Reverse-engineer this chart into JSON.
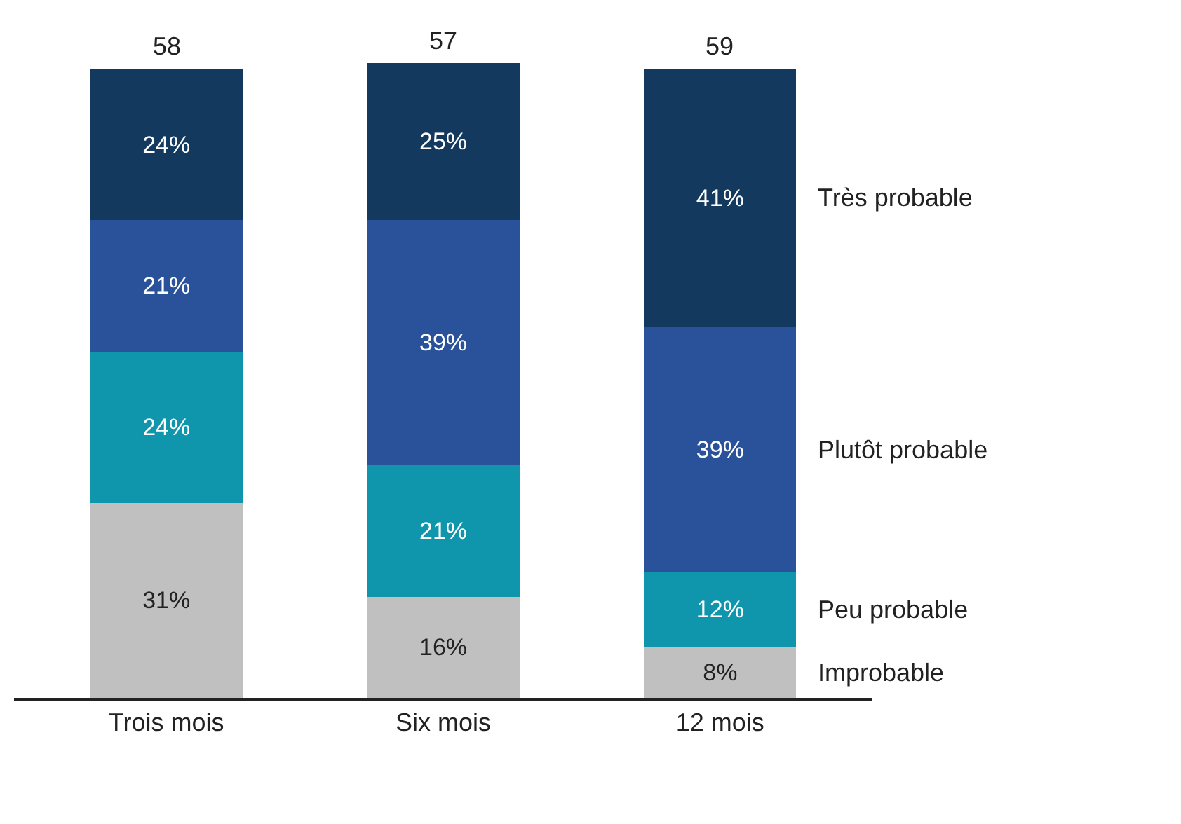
{
  "chart_data": {
    "type": "bar",
    "stacked": true,
    "categories": [
      "Trois mois",
      "Six mois",
      "12 mois"
    ],
    "series": [
      {
        "name": "Improbable",
        "color": "#c0c0c0",
        "values": [
          31,
          16,
          8
        ],
        "value_labels": [
          "31%",
          "16%",
          "8%"
        ]
      },
      {
        "name": "Peu probable",
        "color": "#0f96ad",
        "values": [
          24,
          21,
          12
        ],
        "value_labels": [
          "24%",
          "21%",
          "12%"
        ]
      },
      {
        "name": "Plutôt probable",
        "color": "#2a529a",
        "values": [
          21,
          39,
          39
        ],
        "value_labels": [
          "21%",
          "39%",
          "39%"
        ]
      },
      {
        "name": "Très probable",
        "color": "#14395e",
        "values": [
          24,
          25,
          41
        ],
        "value_labels": [
          "24%",
          "25%",
          "41%"
        ]
      }
    ],
    "annotations": [
      "58",
      "57",
      "59"
    ],
    "legend": false
  }
}
